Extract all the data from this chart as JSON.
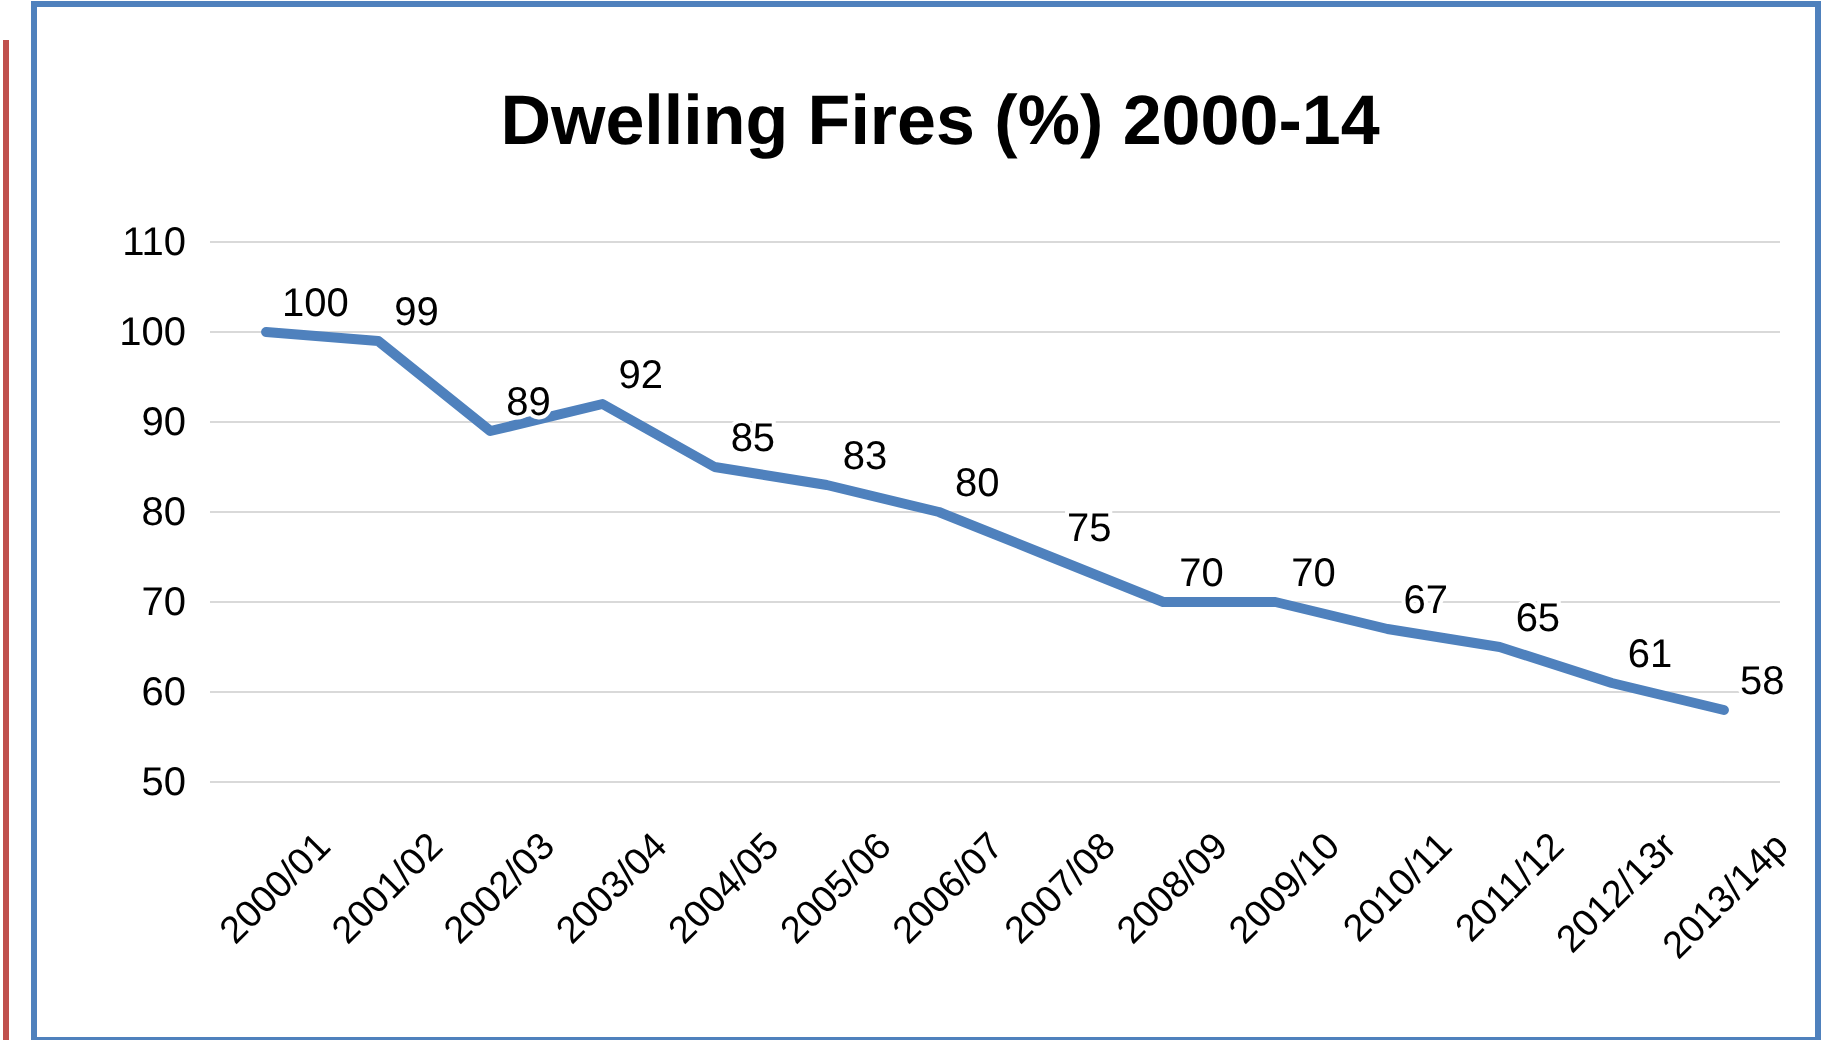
{
  "chart_data": {
    "type": "line",
    "title": "Dwelling Fires (%) 2000-14",
    "categories": [
      "2000/01",
      "2001/02",
      "2002/03",
      "2003/04",
      "2004/05",
      "2005/06",
      "2006/07",
      "2007/08",
      "2008/09",
      "2009/10",
      "2010/11",
      "2011/12",
      "2012/13r",
      "2013/14p"
    ],
    "series": [
      {
        "color": "#4f81bd",
        "values": [
          100,
          99,
          89,
          92,
          85,
          83,
          80,
          75,
          70,
          70,
          67,
          65,
          61,
          58
        ]
      }
    ],
    "ylim": [
      50,
      110
    ],
    "yticks": [
      50,
      60,
      70,
      80,
      90,
      100,
      110
    ],
    "grid": "y",
    "data_labels": true,
    "marker": "none",
    "line_style": "solid"
  }
}
